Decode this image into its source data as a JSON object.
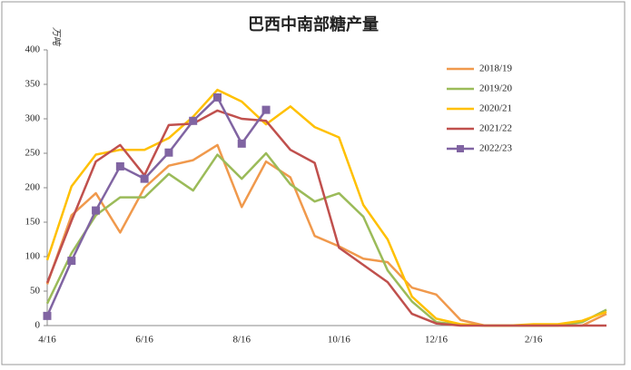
{
  "chart_data": {
    "type": "line",
    "title": "巴西中南部糖产量",
    "y_label": "万吨",
    "categories": [
      "4/16",
      null,
      null,
      null,
      "6/16",
      null,
      null,
      null,
      "8/16",
      null,
      null,
      null,
      "10/16",
      null,
      null,
      null,
      "12/16",
      null,
      null,
      null,
      "2/16",
      null,
      null,
      null
    ],
    "series": [
      {
        "name": "2018/19",
        "color": "#f0994c",
        "values": [
          60,
          160,
          192,
          135,
          200,
          232,
          240,
          262,
          172,
          238,
          215,
          130,
          115,
          97,
          92,
          55,
          45,
          8,
          0,
          0,
          0,
          0,
          0,
          17
        ]
      },
      {
        "name": "2019/20",
        "color": "#9bbb59",
        "values": [
          32,
          105,
          160,
          186,
          186,
          220,
          196,
          248,
          213,
          250,
          205,
          180,
          192,
          158,
          80,
          35,
          5,
          1,
          0,
          0,
          0,
          0,
          5,
          23
        ]
      },
      {
        "name": "2020/21",
        "color": "#ffc000",
        "values": [
          95,
          202,
          248,
          255,
          255,
          272,
          303,
          342,
          325,
          292,
          318,
          288,
          273,
          175,
          125,
          42,
          10,
          2,
          0,
          0,
          2,
          2,
          7,
          20
        ]
      },
      {
        "name": "2021/22",
        "color": "#c0504d",
        "values": [
          62,
          152,
          238,
          262,
          218,
          291,
          293,
          312,
          300,
          297,
          255,
          236,
          113,
          88,
          63,
          17,
          3,
          0,
          0,
          0,
          0,
          0,
          0,
          0
        ]
      },
      {
        "name": "2022/23",
        "color": "#8064a2",
        "marker": "square",
        "values": [
          14,
          94,
          167,
          231,
          213,
          251,
          297,
          331,
          264,
          313,
          null,
          null,
          null,
          null,
          null,
          null,
          null,
          null,
          null,
          null,
          null,
          null,
          null,
          null
        ]
      }
    ],
    "ylim": [
      0,
      400
    ],
    "yticks": [
      0,
      50,
      100,
      150,
      200,
      250,
      300,
      350,
      400
    ],
    "grid": false,
    "legend": "upper right"
  }
}
